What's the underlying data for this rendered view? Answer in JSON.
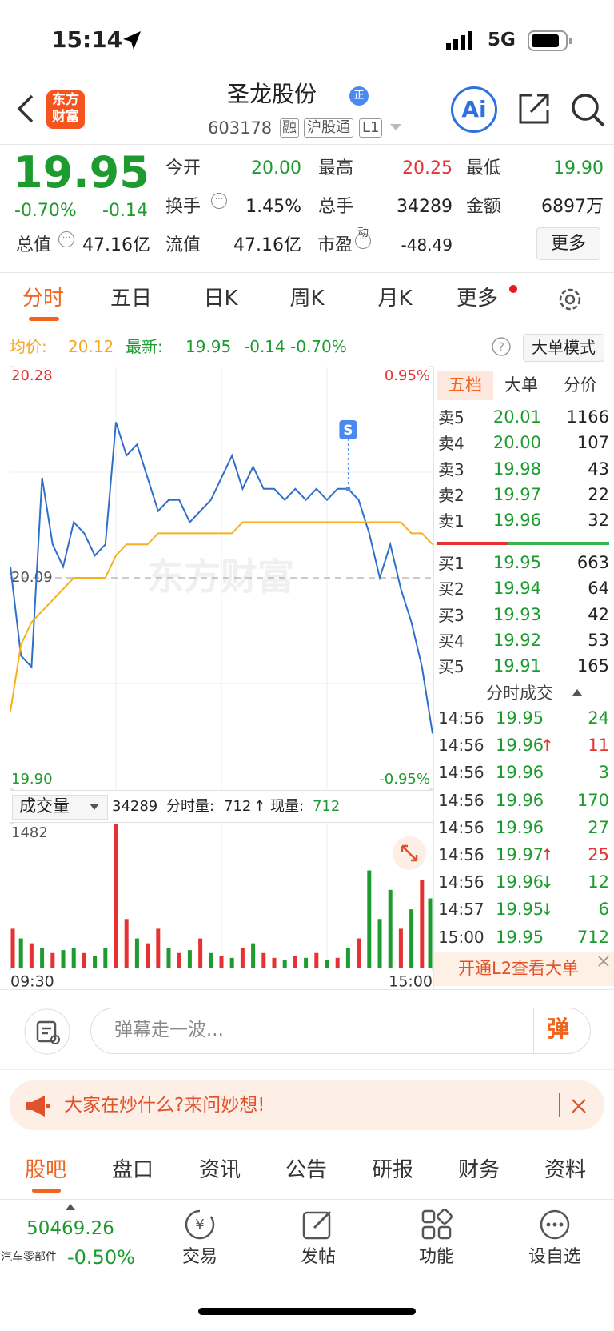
{
  "status_bar": {
    "time": "15:14",
    "network": "5G"
  },
  "header": {
    "name": "圣龙股份",
    "badge": "正",
    "code": "603178",
    "tags": [
      "融",
      "沪股通",
      "L1"
    ],
    "ai": "Ai",
    "logo": [
      "东方",
      "财富"
    ]
  },
  "quote": {
    "price": "19.95",
    "change_pct": "-0.70%",
    "change": "-0.14",
    "stats": [
      {
        "label": "今开",
        "value": "20.00",
        "color": "#1e9b2f"
      },
      {
        "label": "最高",
        "value": "20.25",
        "color": "#e63232"
      },
      {
        "label": "最低",
        "value": "19.90",
        "color": "#1e9b2f"
      },
      {
        "label": "换手",
        "value": "1.45%"
      },
      {
        "label": "总手",
        "value": "34289"
      },
      {
        "label": "金额",
        "value": "6897万"
      },
      {
        "label": "总值",
        "value": "47.16亿"
      },
      {
        "label": "流值",
        "value": "47.16亿"
      },
      {
        "label": "市盈",
        "value": "-48.49"
      }
    ],
    "pe_sup": "动",
    "more": "更多"
  },
  "tabs": [
    "分时",
    "五日",
    "日K",
    "周K",
    "月K",
    "更多"
  ],
  "info": {
    "avg_label": "均价:",
    "avg": "20.12",
    "latest_label": "最新:",
    "latest": "19.95",
    "change": "-0.14",
    "change_pct": "-0.70%",
    "mode": "大单模式"
  },
  "watermark": "东方财富",
  "chart_data": [
    {
      "type": "line",
      "xlim": [
        0,
        240
      ],
      "ylim": [
        19.9,
        20.28
      ],
      "yticks": [
        20.28,
        20.09,
        {
          "value": 19.9,
          "label": "19.90"
        }
      ],
      "y2lim": [
        -0.95,
        0.95
      ],
      "y2ticks": [
        {
          "value": 0.95,
          "label": "0.95%"
        },
        {
          "value": -0.95,
          "label": "-0.95%"
        }
      ],
      "x": [
        0,
        6,
        12,
        18,
        24,
        30,
        36,
        42,
        48,
        54,
        60,
        66,
        72,
        78,
        84,
        90,
        96,
        102,
        108,
        114,
        120,
        126,
        132,
        138,
        144,
        150,
        156,
        162,
        168,
        174,
        180,
        186,
        192,
        198,
        204,
        210,
        216,
        222,
        228,
        234,
        240
      ],
      "series": [
        {
          "color": "#2f6fc9",
          "values": [
            20.1,
            20.02,
            20.01,
            20.18,
            20.12,
            20.1,
            20.14,
            20.13,
            20.11,
            20.12,
            20.23,
            20.2,
            20.21,
            20.18,
            20.15,
            20.16,
            20.16,
            20.14,
            20.15,
            20.16,
            20.18,
            20.2,
            20.17,
            20.19,
            20.17,
            20.17,
            20.16,
            20.17,
            20.16,
            20.17,
            20.16,
            20.17,
            20.17,
            20.16,
            20.13,
            20.09,
            20.12,
            20.08,
            20.05,
            20.01,
            19.95
          ]
        },
        {
          "color": "#f5b120",
          "values": [
            19.97,
            20.03,
            20.05,
            20.06,
            20.07,
            20.08,
            20.09,
            20.09,
            20.09,
            20.09,
            20.11,
            20.12,
            20.12,
            20.12,
            20.13,
            20.13,
            20.13,
            20.13,
            20.13,
            20.13,
            20.13,
            20.13,
            20.14,
            20.14,
            20.14,
            20.14,
            20.14,
            20.14,
            20.14,
            20.14,
            20.14,
            20.14,
            20.14,
            20.14,
            20.14,
            20.14,
            20.14,
            20.14,
            20.13,
            20.13,
            20.12
          ]
        }
      ],
      "annotations": [
        {
          "text": "S",
          "x": 192
        }
      ]
    },
    {
      "type": "bar",
      "xlim": [
        0,
        240
      ],
      "ylim": [
        0,
        1482
      ],
      "yticks": [
        1482
      ],
      "xticks": [
        {
          "value": 0,
          "label": "09:30"
        },
        {
          "value": 240,
          "label": "15:00"
        }
      ],
      "x": [
        0,
        6,
        12,
        18,
        24,
        30,
        36,
        42,
        48,
        54,
        60,
        66,
        72,
        78,
        84,
        90,
        96,
        102,
        108,
        114,
        120,
        126,
        132,
        138,
        144,
        150,
        156,
        162,
        168,
        174,
        180,
        186,
        192,
        198,
        204,
        210,
        216,
        222,
        228,
        234,
        240
      ],
      "values": [
        400,
        300,
        250,
        200,
        150,
        180,
        200,
        150,
        120,
        200,
        1482,
        500,
        300,
        250,
        400,
        200,
        150,
        180,
        300,
        150,
        120,
        100,
        200,
        250,
        150,
        100,
        80,
        120,
        100,
        150,
        80,
        100,
        200,
        300,
        1000,
        500,
        800,
        400,
        600,
        900,
        712
      ],
      "colors": [
        "#e63232",
        "#1e9b2f",
        "#e63232",
        "#1e9b2f",
        "#e63232",
        "#1e9b2f",
        "#1e9b2f",
        "#e63232",
        "#1e9b2f",
        "#1e9b2f",
        "#e63232",
        "#e63232",
        "#1e9b2f",
        "#e63232",
        "#e63232",
        "#1e9b2f",
        "#e63232",
        "#1e9b2f",
        "#e63232",
        "#1e9b2f",
        "#e63232",
        "#1e9b2f",
        "#e63232",
        "#1e9b2f",
        "#e63232",
        "#e63232",
        "#1e9b2f",
        "#e63232",
        "#1e9b2f",
        "#e63232",
        "#1e9b2f",
        "#e63232",
        "#1e9b2f",
        "#e63232",
        "#1e9b2f",
        "#1e9b2f",
        "#1e9b2f",
        "#e63232",
        "#1e9b2f",
        "#e63232",
        "#1e9b2f"
      ]
    }
  ],
  "volume_bar": {
    "selector": "成交量",
    "total": "34289",
    "period_label": "分时量:",
    "period": "712",
    "arrow": "↑",
    "current_label": "现量:",
    "current": "712"
  },
  "order_book": {
    "tabs": [
      "五档",
      "大单",
      "分价"
    ],
    "asks": [
      [
        "卖5",
        "20.01",
        "1166"
      ],
      [
        "卖4",
        "20.00",
        "107"
      ],
      [
        "卖3",
        "19.98",
        "43"
      ],
      [
        "卖2",
        "19.97",
        "22"
      ],
      [
        "卖1",
        "19.96",
        "32"
      ]
    ],
    "bids": [
      [
        "买1",
        "19.95",
        "663"
      ],
      [
        "买2",
        "19.94",
        "64"
      ],
      [
        "买3",
        "19.93",
        "42"
      ],
      [
        "买4",
        "19.92",
        "53"
      ],
      [
        "买5",
        "19.91",
        "165"
      ]
    ]
  },
  "trades": {
    "title": "分时成交",
    "rows": [
      {
        "time": "14:56",
        "price": "19.95",
        "arrow": "",
        "volume": "24",
        "color": "#1e9b2f"
      },
      {
        "time": "14:56",
        "price": "19.96",
        "arrow": "↑",
        "volume": "11",
        "color": "#e63232"
      },
      {
        "time": "14:56",
        "price": "19.96",
        "arrow": "",
        "volume": "3",
        "color": "#1e9b2f"
      },
      {
        "time": "14:56",
        "price": "19.96",
        "arrow": "",
        "volume": "170",
        "color": "#1e9b2f"
      },
      {
        "time": "14:56",
        "price": "19.96",
        "arrow": "",
        "volume": "27",
        "color": "#1e9b2f"
      },
      {
        "time": "14:56",
        "price": "19.97",
        "arrow": "↑",
        "volume": "25",
        "color": "#e63232"
      },
      {
        "time": "14:56",
        "price": "19.96",
        "arrow": "↓",
        "volume": "12",
        "color": "#1e9b2f"
      },
      {
        "time": "14:57",
        "price": "19.95",
        "arrow": "↓",
        "volume": "6",
        "color": "#1e9b2f"
      },
      {
        "time": "15:00",
        "price": "19.95",
        "arrow": "",
        "volume": "712",
        "color": "#1e9b2f"
      }
    ]
  },
  "l2_banner": "开通L2查看大单",
  "comment": {
    "placeholder": "弹幕走一波...",
    "button": "弹"
  },
  "promo": "大家在炒什么?来问妙想!",
  "bottom_tabs": [
    "股吧",
    "盘口",
    "资讯",
    "公告",
    "研报",
    "财务",
    "资料"
  ],
  "footer": {
    "index_value": "50469.26",
    "index_name": "汽车零部件",
    "index_change": "-0.50%",
    "nav": [
      "交易",
      "发帖",
      "功能",
      "设自选"
    ]
  }
}
